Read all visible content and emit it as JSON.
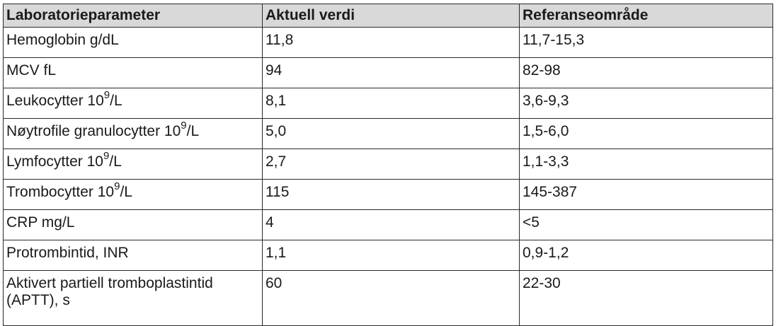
{
  "headers": [
    "Laboratorieparameter",
    "Aktuell verdi",
    "Referanseområde"
  ],
  "rows": [
    {
      "param": "Hemoglobin  g/dL",
      "sup": "",
      "param_suffix": "",
      "value": "11,8",
      "reference": "11,7-15,3"
    },
    {
      "param": "MCV fL",
      "sup": "",
      "param_suffix": "",
      "value": "94",
      "reference": "82-98"
    },
    {
      "param": "Leukocytter 10",
      "sup": "9",
      "param_suffix": "/L",
      "value": "8,1",
      "reference": "3,6-9,3"
    },
    {
      "param": "Nøytrofile granulocytter 10",
      "sup": "9",
      "param_suffix": "/L",
      "value": "5,0",
      "reference": "1,5-6,0"
    },
    {
      "param": "Lymfocytter 10",
      "sup": "9",
      "param_suffix": "/L",
      "value": "2,7",
      "reference": "1,1-3,3"
    },
    {
      "param": "Trombocytter 10",
      "sup": "9",
      "param_suffix": "/L",
      "value": "115",
      "reference": "145-387"
    },
    {
      "param": "CRP mg/L",
      "sup": "",
      "param_suffix": "",
      "value": "4",
      "reference": "<5"
    },
    {
      "param": "Protrombintid, INR",
      "sup": "",
      "param_suffix": "",
      "value": "1,1",
      "reference": "0,9-1,2"
    },
    {
      "param": "Aktivert partiell tromboplastintid (APTT), s",
      "sup": "",
      "param_suffix": "",
      "value": "60",
      "reference": "22-30"
    }
  ]
}
